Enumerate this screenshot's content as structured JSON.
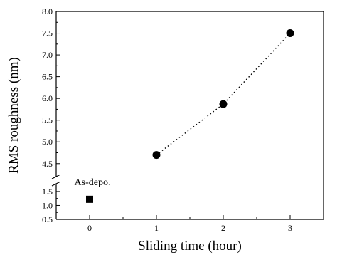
{
  "chart_data": {
    "type": "scatter",
    "xlabel": "Sliding time (hour)",
    "ylabel": "RMS roughness (nm)",
    "xlim": [
      -0.5,
      3.5
    ],
    "x_ticks": [
      0,
      1,
      2,
      3
    ],
    "x_tick_labels": [
      "0",
      "1",
      "2",
      "3"
    ],
    "y_axis_break": true,
    "ylim_lower": [
      0.5,
      1.6
    ],
    "ylim_upper": [
      4.3,
      8.0
    ],
    "y_ticks_lower": [
      0.5,
      1.0,
      1.5
    ],
    "y_tick_labels_lower": [
      "0.5",
      "1.0",
      "1.5"
    ],
    "y_ticks_upper": [
      4.5,
      5.0,
      5.5,
      6.0,
      6.5,
      7.0,
      7.5,
      8.0
    ],
    "y_tick_labels_upper": [
      "4.5",
      "5.0",
      "5.5",
      "6.0",
      "6.5",
      "7.0",
      "7.5",
      "8.0"
    ],
    "grid": false,
    "series": [
      {
        "marker": "square",
        "line": "none",
        "points": [
          {
            "x": 0,
            "y": 1.22
          }
        ]
      },
      {
        "marker": "circle",
        "line": "dotted",
        "points": [
          {
            "x": 1,
            "y": 4.7
          },
          {
            "x": 2,
            "y": 5.87
          },
          {
            "x": 3,
            "y": 7.5
          }
        ]
      }
    ],
    "annotations": [
      {
        "text": "As-depo.",
        "x": 0,
        "y": 1.22
      }
    ]
  }
}
